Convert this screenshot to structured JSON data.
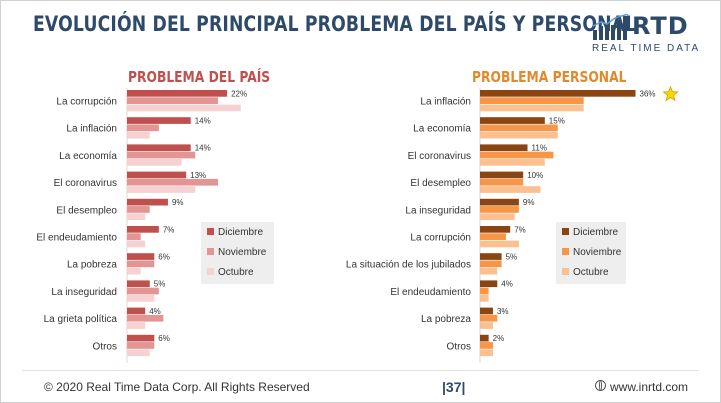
{
  "header": {
    "title": "EVOLUCIÓN DEL PRINCIPAL PROBLEMA DEL PAÍS Y PERSONAL",
    "logo_word": "RTD",
    "logo_sub": "REAL TIME DATA"
  },
  "footer": {
    "copyright": "© 2020 Real Time Data Corp. All Rights Reserved",
    "page": "|37|",
    "url": "www.inrtd.com"
  },
  "colors": {
    "title": "#2e4a6b",
    "pais": [
      "#c0504d",
      "#e39593",
      "#f5d2d1"
    ],
    "personal": [
      "#8b4513",
      "#f79646",
      "#fac090"
    ],
    "star": "#ffd700"
  },
  "chart_data": [
    {
      "type": "bar",
      "orientation": "horizontal",
      "title": "PROBLEMA DEL PAÍS",
      "categories": [
        "La corrupción",
        "La inflación",
        "La economía",
        "El coronavirus",
        "El desempleo",
        "El endeudamiento",
        "La pobreza",
        "La inseguridad",
        "La grieta política",
        "Otros"
      ],
      "series": [
        {
          "name": "Diciembre",
          "values": [
            22,
            14,
            14,
            13,
            9,
            7,
            6,
            5,
            4,
            6
          ]
        },
        {
          "name": "Noviembre",
          "values": [
            20,
            7,
            15,
            20,
            5,
            3,
            6,
            7,
            8,
            6
          ]
        },
        {
          "name": "Octubre",
          "values": [
            25,
            5,
            12,
            15,
            4,
            4,
            3,
            6,
            4,
            5
          ]
        }
      ],
      "data_labels": [
        "22%",
        "14%",
        "14%",
        "13%",
        "9%",
        "7%",
        "6%",
        "5%",
        "4%",
        "6%"
      ],
      "legend": [
        "Diciembre",
        "Noviembre",
        "Octubre"
      ],
      "legend_position": "inside-right",
      "grid": false,
      "xlim": [
        0,
        40
      ]
    },
    {
      "type": "bar",
      "orientation": "horizontal",
      "title": "PROBLEMA PERSONAL",
      "categories": [
        "La inflación",
        "La economía",
        "El coronavirus",
        "El desempleo",
        "La inseguridad",
        "La corrupción",
        "La situación de los jubilados",
        "El endeudamiento",
        "La pobreza",
        "Otros"
      ],
      "series": [
        {
          "name": "Diciembre",
          "values": [
            36,
            15,
            11,
            10,
            9,
            7,
            5,
            4,
            3,
            2
          ]
        },
        {
          "name": "Noviembre",
          "values": [
            24,
            18,
            17,
            10,
            9,
            6,
            5,
            2,
            4,
            3
          ]
        },
        {
          "name": "Octubre",
          "values": [
            24,
            18,
            15,
            14,
            8,
            9,
            4,
            2,
            3,
            3
          ]
        }
      ],
      "data_labels": [
        "36%",
        "15%",
        "11%",
        "10%",
        "9%",
        "7%",
        "5%",
        "4%",
        "3%",
        "2%"
      ],
      "legend": [
        "Diciembre",
        "Noviembre",
        "Octubre"
      ],
      "legend_position": "inside-right",
      "grid": false,
      "xlim": [
        0,
        40
      ],
      "highlight": "star"
    }
  ]
}
